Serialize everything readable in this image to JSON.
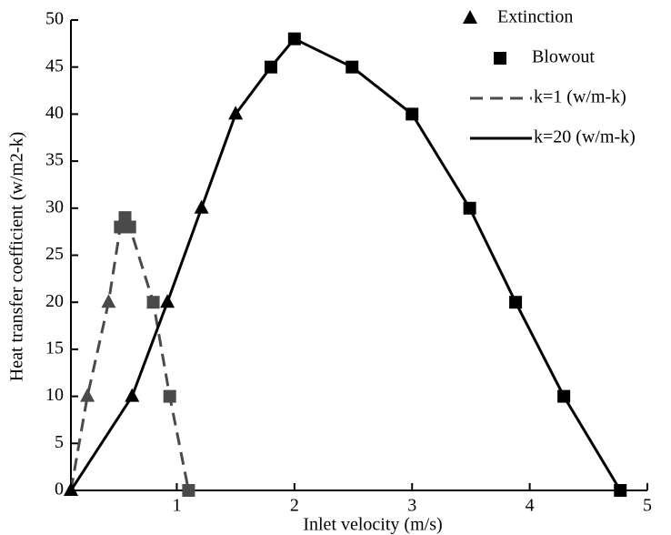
{
  "chart_data": {
    "type": "line",
    "x_label": "Inlet velocity (m/s)",
    "y_label": "Heat transfer coefficient (w/m2-k)",
    "xlim": [
      0.1,
      5
    ],
    "ylim": [
      0,
      50
    ],
    "xticks": [
      1,
      2,
      3,
      4,
      5
    ],
    "yticks": [
      0,
      5,
      10,
      15,
      20,
      25,
      30,
      35,
      40,
      45,
      50
    ],
    "grid": false,
    "marker_legend": [
      {
        "name": "Extinction",
        "marker": "triangle"
      },
      {
        "name": "Blowout",
        "marker": "square"
      }
    ],
    "series": [
      {
        "name": "k=1 (w/m-k)",
        "color": "#4a4a4a",
        "dashed": true,
        "x": [
          0.1,
          0.24,
          0.42,
          0.52,
          0.56,
          0.6,
          0.8,
          0.94,
          1.1
        ],
        "values": [
          0,
          10,
          20,
          28,
          29,
          28,
          20,
          10,
          0
        ],
        "markers": [
          "triangle",
          "triangle",
          "triangle",
          "square",
          "square",
          "square",
          "square",
          "square",
          "square"
        ]
      },
      {
        "name": "k=20 (w/m-k)",
        "color": "#000000",
        "dashed": false,
        "x": [
          0.1,
          0.62,
          0.92,
          1.21,
          1.5,
          1.8,
          2.0,
          2.49,
          3.0,
          3.49,
          3.88,
          4.29,
          4.77
        ],
        "values": [
          0,
          10,
          20,
          30,
          40,
          45,
          48,
          45,
          40,
          30,
          20,
          10,
          0
        ],
        "markers": [
          "triangle",
          "triangle",
          "triangle",
          "triangle",
          "triangle",
          "square",
          "square",
          "square",
          "square",
          "square",
          "square",
          "square",
          "square"
        ]
      }
    ]
  }
}
